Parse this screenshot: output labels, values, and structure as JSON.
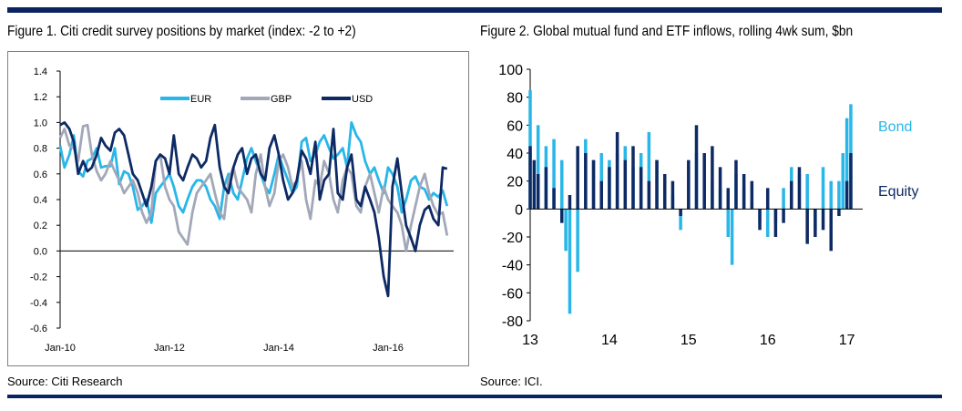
{
  "colors": {
    "eur": "#29b6e8",
    "gbp": "#a2a8b8",
    "usd": "#0e2a64",
    "rule": "#0b2461",
    "bond": "#29b6e8",
    "equity": "#0e2a64"
  },
  "figure1": {
    "title": "Figure 1. Citi credit survey positions by market (index: -2 to +2)",
    "source": "Source: Citi Research"
  },
  "figure2": {
    "title": "Figure 2. Global mutual fund and ETF inflows, rolling 4wk sum, $bn",
    "source": "Source: ICI."
  },
  "chart_data": [
    {
      "type": "line",
      "title": "Figure 1. Citi credit survey positions by market (index: -2 to +2)",
      "ylim": [
        -0.6,
        1.4
      ],
      "yticks": [
        "1.4",
        "1.2",
        "1.0",
        "0.8",
        "0.6",
        "0.4",
        "0.2",
        "0.0",
        "-0.2",
        "-0.4",
        "-0.6"
      ],
      "xlim": [
        2010.0,
        2017.2
      ],
      "xticks": [
        {
          "label": "Jan-10",
          "at": 2010.0
        },
        {
          "label": "Jan-12",
          "at": 2012.0
        },
        {
          "label": "Jan-14",
          "at": 2014.0
        },
        {
          "label": "Jan-16",
          "at": 2016.0
        }
      ],
      "legend_position": "top",
      "series": [
        {
          "name": "EUR",
          "color": "#29b6e8",
          "x": [
            2010.0,
            2010.08,
            2010.17,
            2010.25,
            2010.33,
            2010.42,
            2010.5,
            2010.58,
            2010.67,
            2010.75,
            2010.83,
            2010.92,
            2011.0,
            2011.08,
            2011.17,
            2011.25,
            2011.33,
            2011.42,
            2011.5,
            2011.58,
            2011.67,
            2011.75,
            2011.83,
            2011.92,
            2012.0,
            2012.08,
            2012.17,
            2012.25,
            2012.33,
            2012.42,
            2012.5,
            2012.58,
            2012.67,
            2012.75,
            2012.83,
            2012.92,
            2013.0,
            2013.08,
            2013.17,
            2013.25,
            2013.33,
            2013.42,
            2013.5,
            2013.58,
            2013.67,
            2013.75,
            2013.83,
            2013.92,
            2014.0,
            2014.08,
            2014.17,
            2014.25,
            2014.33,
            2014.42,
            2014.5,
            2014.58,
            2014.67,
            2014.75,
            2014.83,
            2014.92,
            2015.0,
            2015.08,
            2015.17,
            2015.25,
            2015.33,
            2015.42,
            2015.5,
            2015.58,
            2015.67,
            2015.75,
            2015.83,
            2015.92,
            2016.0,
            2016.08,
            2016.17,
            2016.25,
            2016.33,
            2016.42,
            2016.5,
            2016.58,
            2016.67,
            2016.75,
            2016.83,
            2016.92,
            2017.0,
            2017.08
          ],
          "y": [
            0.82,
            0.65,
            0.75,
            0.9,
            0.62,
            0.58,
            0.7,
            0.72,
            0.8,
            0.65,
            0.66,
            0.66,
            0.8,
            0.52,
            0.62,
            0.6,
            0.5,
            0.32,
            0.35,
            0.4,
            0.22,
            0.45,
            0.5,
            0.55,
            0.6,
            0.5,
            0.35,
            0.3,
            0.4,
            0.5,
            0.55,
            0.55,
            0.5,
            0.4,
            0.35,
            0.25,
            0.5,
            0.6,
            0.45,
            0.4,
            0.55,
            0.72,
            0.8,
            0.7,
            0.6,
            0.5,
            0.45,
            0.6,
            0.75,
            0.65,
            0.55,
            0.45,
            0.5,
            0.85,
            0.88,
            0.7,
            0.75,
            0.85,
            0.9,
            0.8,
            0.72,
            0.75,
            0.8,
            0.65,
            1.0,
            0.9,
            0.85,
            0.7,
            0.6,
            0.65,
            0.55,
            0.45,
            0.65,
            0.6,
            0.5,
            0.3,
            0.4,
            0.55,
            0.58,
            0.5,
            0.48,
            0.4,
            0.45,
            0.42,
            0.47,
            0.35
          ]
        },
        {
          "name": "GBP",
          "color": "#a2a8b8",
          "x": [
            2010.0,
            2010.08,
            2010.17,
            2010.25,
            2010.33,
            2010.42,
            2010.5,
            2010.58,
            2010.67,
            2010.75,
            2010.83,
            2010.92,
            2011.0,
            2011.08,
            2011.17,
            2011.25,
            2011.33,
            2011.42,
            2011.5,
            2011.58,
            2011.67,
            2011.75,
            2011.83,
            2011.92,
            2012.0,
            2012.08,
            2012.17,
            2012.25,
            2012.33,
            2012.42,
            2012.5,
            2012.58,
            2012.67,
            2012.75,
            2012.83,
            2012.92,
            2013.0,
            2013.08,
            2013.17,
            2013.25,
            2013.33,
            2013.42,
            2013.5,
            2013.58,
            2013.67,
            2013.75,
            2013.83,
            2013.92,
            2014.0,
            2014.08,
            2014.17,
            2014.25,
            2014.33,
            2014.42,
            2014.5,
            2014.58,
            2014.67,
            2014.75,
            2014.83,
            2014.92,
            2015.0,
            2015.08,
            2015.17,
            2015.25,
            2015.33,
            2015.42,
            2015.5,
            2015.58,
            2015.67,
            2015.75,
            2015.83,
            2015.92,
            2016.0,
            2016.08,
            2016.17,
            2016.25,
            2016.33,
            2016.42,
            2016.5,
            2016.58,
            2016.67,
            2016.75,
            2016.83,
            2016.92,
            2017.0,
            2017.08
          ],
          "y": [
            0.88,
            0.95,
            0.82,
            0.8,
            0.7,
            0.97,
            0.98,
            0.75,
            0.62,
            0.55,
            0.6,
            0.7,
            0.62,
            0.55,
            0.45,
            0.5,
            0.55,
            0.45,
            0.3,
            0.22,
            0.3,
            0.7,
            0.75,
            0.5,
            0.4,
            0.35,
            0.15,
            0.1,
            0.05,
            0.3,
            0.45,
            0.5,
            0.55,
            0.6,
            0.45,
            0.3,
            0.25,
            0.55,
            0.65,
            0.5,
            0.45,
            0.4,
            0.3,
            0.6,
            0.75,
            0.5,
            0.35,
            0.45,
            0.7,
            0.75,
            0.65,
            0.5,
            0.55,
            0.7,
            0.4,
            0.25,
            0.55,
            0.5,
            0.7,
            0.6,
            0.4,
            0.3,
            0.55,
            0.65,
            0.6,
            0.35,
            0.3,
            0.5,
            0.6,
            0.45,
            0.3,
            0.5,
            0.4,
            0.35,
            0.3,
            0.2,
            0.0,
            0.2,
            0.35,
            0.5,
            0.6,
            0.45,
            0.35,
            0.28,
            0.3,
            0.12
          ]
        },
        {
          "name": "USD",
          "color": "#0e2a64",
          "x": [
            2010.0,
            2010.08,
            2010.17,
            2010.25,
            2010.33,
            2010.42,
            2010.5,
            2010.58,
            2010.67,
            2010.75,
            2010.83,
            2010.92,
            2011.0,
            2011.08,
            2011.17,
            2011.25,
            2011.33,
            2011.42,
            2011.5,
            2011.58,
            2011.67,
            2011.75,
            2011.83,
            2011.92,
            2012.0,
            2012.08,
            2012.17,
            2012.25,
            2012.33,
            2012.42,
            2012.5,
            2012.58,
            2012.67,
            2012.75,
            2012.83,
            2012.92,
            2013.0,
            2013.08,
            2013.17,
            2013.25,
            2013.33,
            2013.42,
            2013.5,
            2013.58,
            2013.67,
            2013.75,
            2013.83,
            2013.92,
            2014.0,
            2014.08,
            2014.17,
            2014.25,
            2014.33,
            2014.42,
            2014.5,
            2014.58,
            2014.67,
            2014.75,
            2014.83,
            2014.92,
            2015.0,
            2015.08,
            2015.17,
            2015.25,
            2015.33,
            2015.42,
            2015.5,
            2015.58,
            2015.67,
            2015.75,
            2015.83,
            2015.92,
            2016.0,
            2016.08,
            2016.17,
            2016.25,
            2016.33,
            2016.42,
            2016.5,
            2016.58,
            2016.67,
            2016.75,
            2016.83,
            2016.92,
            2017.0,
            2017.08
          ],
          "y": [
            0.98,
            1.0,
            0.95,
            0.85,
            0.6,
            0.7,
            0.62,
            0.65,
            0.75,
            0.88,
            0.82,
            0.78,
            0.92,
            0.95,
            0.9,
            0.75,
            0.6,
            0.55,
            0.45,
            0.35,
            0.5,
            0.7,
            0.75,
            0.72,
            0.6,
            0.9,
            0.6,
            0.55,
            0.65,
            0.75,
            0.72,
            0.65,
            0.7,
            0.88,
            0.98,
            0.65,
            0.5,
            0.45,
            0.65,
            0.75,
            0.8,
            0.6,
            0.72,
            0.75,
            0.6,
            0.55,
            0.8,
            0.9,
            0.75,
            0.55,
            0.4,
            0.45,
            0.55,
            0.78,
            0.72,
            0.6,
            0.85,
            0.4,
            0.55,
            0.6,
            0.95,
            0.45,
            0.4,
            0.65,
            0.75,
            0.4,
            0.35,
            0.5,
            0.4,
            0.3,
            0.1,
            -0.2,
            -0.35,
            0.5,
            0.72,
            0.45,
            0.2,
            0.1,
            0.0,
            0.2,
            0.32,
            0.35,
            0.25,
            0.2,
            0.65,
            0.64
          ]
        }
      ]
    },
    {
      "type": "bar",
      "title": "Figure 2. Global mutual fund and ETF inflows, rolling 4wk sum, $bn",
      "ylim": [
        -80,
        100
      ],
      "yticks": [
        "100",
        "80",
        "60",
        "40",
        "20",
        "0",
        "-20",
        "-40",
        "-60",
        "-80"
      ],
      "xlim": [
        2013.0,
        2017.2
      ],
      "xticks": [
        {
          "label": "13",
          "at": 2013.0
        },
        {
          "label": "14",
          "at": 2014.0
        },
        {
          "label": "15",
          "at": 2015.0
        },
        {
          "label": "16",
          "at": 2016.0
        },
        {
          "label": "17",
          "at": 2017.0
        }
      ],
      "legend_position": "right",
      "series": [
        {
          "name": "Bond",
          "color": "#29b6e8",
          "x": [
            2013.0,
            2013.1,
            2013.2,
            2013.3,
            2013.4,
            2013.45,
            2013.5,
            2013.6,
            2013.7,
            2013.8,
            2013.9,
            2014.0,
            2014.1,
            2014.2,
            2014.3,
            2014.4,
            2014.5,
            2014.6,
            2014.7,
            2014.8,
            2014.9,
            2015.0,
            2015.1,
            2015.2,
            2015.3,
            2015.4,
            2015.5,
            2015.55,
            2015.6,
            2015.7,
            2015.8,
            2015.9,
            2016.0,
            2016.1,
            2016.2,
            2016.3,
            2016.4,
            2016.5,
            2016.6,
            2016.7,
            2016.8,
            2016.9,
            2016.95,
            2017.0,
            2017.05
          ],
          "y": [
            85,
            60,
            45,
            50,
            35,
            -30,
            -75,
            -45,
            50,
            35,
            40,
            35,
            40,
            45,
            30,
            40,
            55,
            35,
            20,
            10,
            -15,
            30,
            40,
            35,
            20,
            15,
            -20,
            -40,
            25,
            15,
            5,
            -10,
            -20,
            -10,
            15,
            30,
            25,
            25,
            -15,
            30,
            20,
            20,
            40,
            65,
            75
          ]
        },
        {
          "name": "Equity",
          "color": "#0e2a64",
          "x": [
            2013.0,
            2013.05,
            2013.1,
            2013.2,
            2013.3,
            2013.4,
            2013.5,
            2013.6,
            2013.7,
            2013.8,
            2013.9,
            2014.0,
            2014.1,
            2014.2,
            2014.3,
            2014.4,
            2014.5,
            2014.6,
            2014.7,
            2014.8,
            2014.9,
            2015.0,
            2015.1,
            2015.2,
            2015.3,
            2015.4,
            2015.5,
            2015.6,
            2015.7,
            2015.8,
            2015.9,
            2016.0,
            2016.1,
            2016.2,
            2016.3,
            2016.4,
            2016.5,
            2016.6,
            2016.7,
            2016.8,
            2016.9,
            2017.0,
            2017.05
          ],
          "y": [
            45,
            35,
            25,
            30,
            15,
            -10,
            10,
            45,
            40,
            35,
            20,
            30,
            55,
            35,
            45,
            30,
            20,
            35,
            25,
            20,
            -5,
            35,
            60,
            40,
            45,
            30,
            15,
            35,
            25,
            20,
            -15,
            15,
            -20,
            -10,
            20,
            30,
            -25,
            -20,
            -15,
            -30,
            -5,
            20,
            40
          ]
        }
      ]
    }
  ]
}
